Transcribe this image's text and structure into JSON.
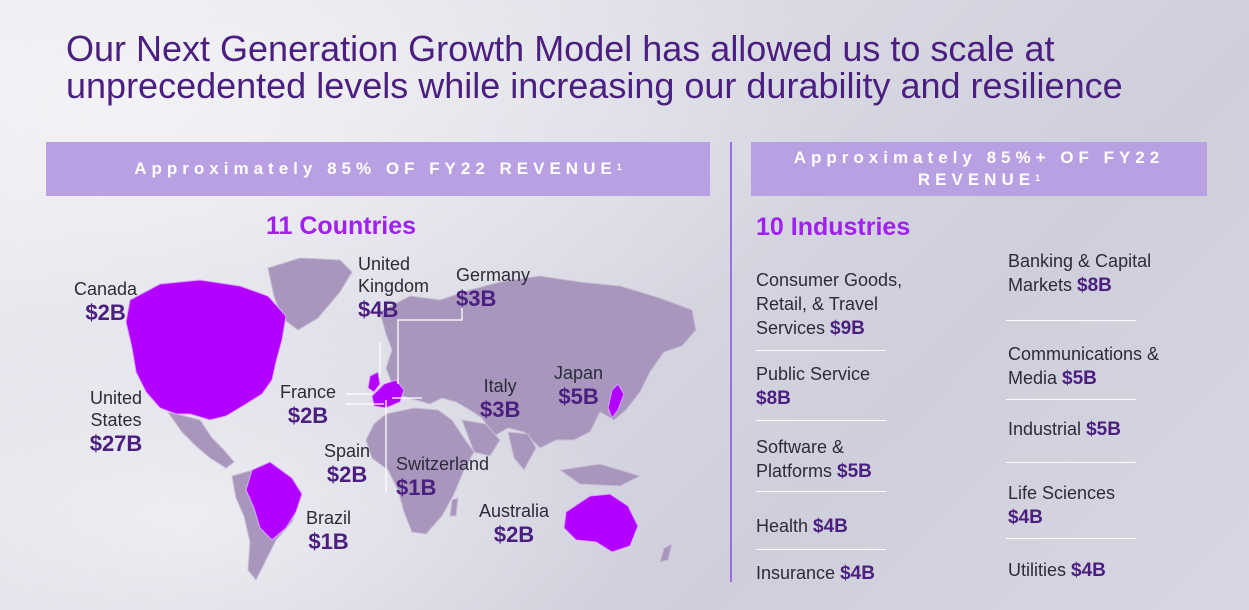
{
  "title": {
    "line1": "Our Next Generation Growth Model has allowed us to scale at",
    "line2": "unprecedented levels while increasing our durability and resilience"
  },
  "left_banner": {
    "text": "Approximately 85% OF FY22 REVENUE",
    "footnote": "1"
  },
  "right_banner": {
    "line1": "Approximately 85%+ OF FY22",
    "line2": "REVENUE",
    "footnote": "1"
  },
  "countries": {
    "heading": "11 Countries",
    "items": [
      {
        "name": "Canada",
        "value": "$2B"
      },
      {
        "name": "United States",
        "value": "$27B"
      },
      {
        "name": "United Kingdom",
        "value": "$4B"
      },
      {
        "name": "Germany",
        "value": "$3B"
      },
      {
        "name": "France",
        "value": "$2B"
      },
      {
        "name": "Italy",
        "value": "$3B"
      },
      {
        "name": "Japan",
        "value": "$5B"
      },
      {
        "name": "Spain",
        "value": "$2B"
      },
      {
        "name": "Switzerland",
        "value": "$1B"
      },
      {
        "name": "Brazil",
        "value": "$1B"
      },
      {
        "name": "Australia",
        "value": "$2B"
      }
    ]
  },
  "industries": {
    "heading": "10 Industries",
    "left": [
      {
        "name": "Consumer Goods, Retail, & Travel Services",
        "value": "$9B"
      },
      {
        "name": "Public Service",
        "value": "$8B"
      },
      {
        "name": "Software & Platforms",
        "value": "$5B"
      },
      {
        "name": "Health",
        "value": "$4B"
      },
      {
        "name": "Insurance",
        "value": "$4B"
      }
    ],
    "right": [
      {
        "name": "Banking & Capital Markets",
        "value": "$8B"
      },
      {
        "name": "Communications & Media",
        "value": "$5B"
      },
      {
        "name": "Industrial",
        "value": "$5B"
      },
      {
        "name": "Life Sciences",
        "value": "$4B"
      },
      {
        "name": "Utilities",
        "value": "$4B"
      }
    ]
  },
  "colors": {
    "accent": "#a020f0",
    "dark_purple": "#4a1f7f",
    "banner": "#b9a0e3",
    "land": "#a896bd",
    "highlight": "#b300ff"
  }
}
